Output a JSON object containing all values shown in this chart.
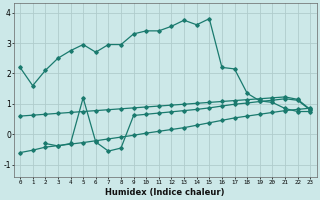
{
  "xlabel": "Humidex (Indice chaleur)",
  "background_color": "#cce8e8",
  "grid_color": "#b0cccc",
  "line_color": "#1a7a6e",
  "xlim": [
    -0.5,
    23.5
  ],
  "ylim": [
    -1.4,
    4.3
  ],
  "xticks": [
    0,
    1,
    2,
    3,
    4,
    5,
    6,
    7,
    8,
    9,
    10,
    11,
    12,
    13,
    14,
    15,
    16,
    17,
    18,
    19,
    20,
    21,
    22,
    23
  ],
  "yticks": [
    -1,
    0,
    1,
    2,
    3,
    4
  ],
  "line1_x": [
    0,
    1,
    2,
    3,
    4,
    5,
    6,
    7,
    8,
    9,
    10,
    11,
    12,
    13,
    14,
    15,
    16,
    17,
    18,
    19,
    20,
    21,
    22,
    23
  ],
  "line1_y": [
    2.2,
    1.6,
    2.1,
    2.5,
    2.75,
    2.95,
    2.7,
    2.95,
    2.95,
    3.3,
    3.4,
    3.4,
    3.55,
    3.75,
    3.6,
    3.8,
    2.2,
    2.15,
    1.35,
    1.1,
    1.05,
    0.85,
    0.75,
    0.75
  ],
  "line2_x": [
    0,
    1,
    2,
    3,
    4,
    5,
    6,
    7,
    8,
    9,
    10,
    11,
    12,
    13,
    14,
    15,
    16,
    17,
    18,
    19,
    20,
    21,
    22,
    23
  ],
  "line2_y": [
    0.6,
    0.63,
    0.66,
    0.69,
    0.72,
    0.75,
    0.78,
    0.81,
    0.84,
    0.87,
    0.9,
    0.93,
    0.96,
    0.99,
    1.02,
    1.05,
    1.08,
    1.11,
    1.14,
    1.17,
    1.2,
    1.23,
    1.15,
    0.82
  ],
  "line3_x": [
    2,
    3,
    4,
    5,
    6,
    7,
    8,
    9,
    10,
    11,
    12,
    13,
    14,
    15,
    16,
    17,
    18,
    19,
    20,
    21,
    22,
    23
  ],
  "line3_y": [
    -0.3,
    -0.38,
    -0.3,
    1.2,
    -0.25,
    -0.55,
    -0.45,
    0.62,
    0.66,
    0.7,
    0.74,
    0.78,
    0.82,
    0.87,
    0.93,
    0.99,
    1.03,
    1.08,
    1.12,
    1.17,
    1.12,
    0.8
  ],
  "line4_x": [
    0,
    1,
    2,
    3,
    4,
    5,
    6,
    7,
    8,
    9,
    10,
    11,
    12,
    13,
    14,
    15,
    16,
    17,
    18,
    19,
    20,
    21,
    22,
    23
  ],
  "line4_y": [
    -0.6,
    -0.52,
    -0.42,
    -0.37,
    -0.32,
    -0.27,
    -0.21,
    -0.15,
    -0.09,
    -0.03,
    0.04,
    0.1,
    0.16,
    0.22,
    0.3,
    0.38,
    0.46,
    0.54,
    0.6,
    0.66,
    0.72,
    0.78,
    0.82,
    0.86
  ]
}
